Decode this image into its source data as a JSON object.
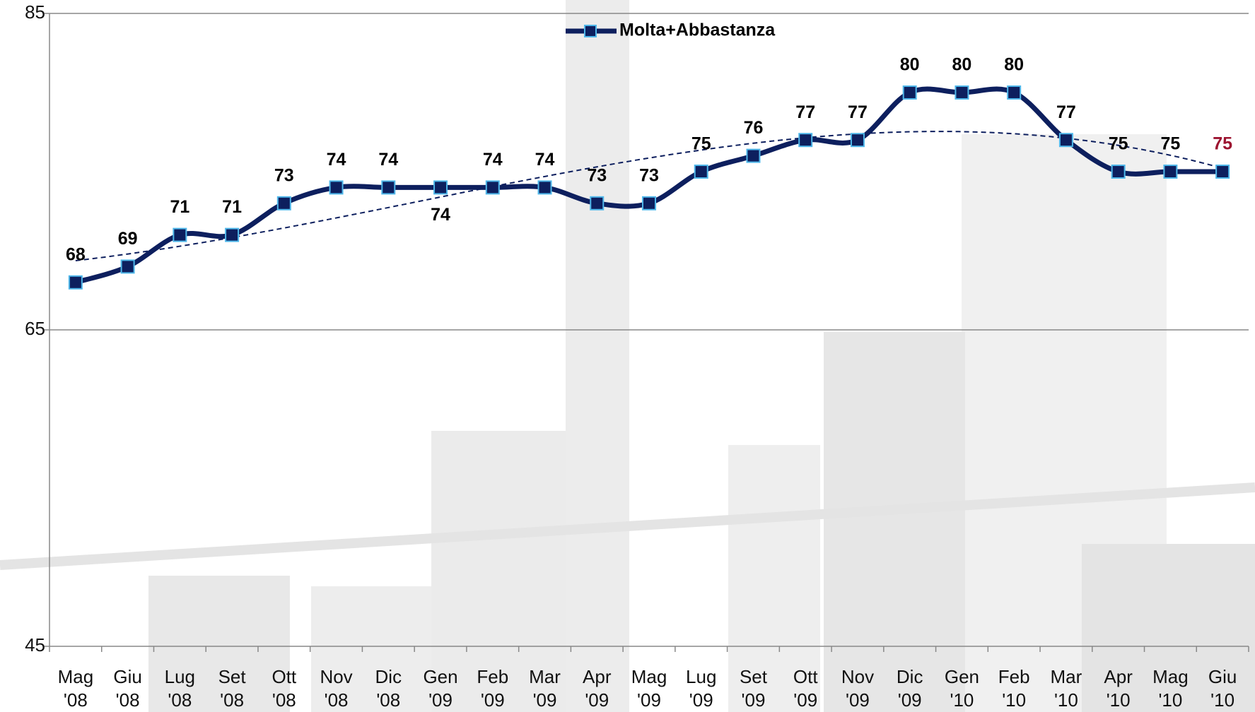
{
  "chart_data": {
    "type": "line",
    "categories": [
      "Mag '08",
      "Giu '08",
      "Lug '08",
      "Set '08",
      "Ott '08",
      "Nov '08",
      "Dic '08",
      "Gen '09",
      "Feb '09",
      "Mar '09",
      "Apr '09",
      "Mag '09",
      "Lug '09",
      "Set '09",
      "Ott '09",
      "Nov '09",
      "Dic '09",
      "Gen '10",
      "Feb '10",
      "Mar '10",
      "Apr '10",
      "Mag '10",
      "Giu '10"
    ],
    "series": [
      {
        "name": "Molta+Abbastanza",
        "color": "#0d1f5e",
        "marker_edge": "#4fb7ea",
        "values": [
          68,
          69,
          71,
          71,
          73,
          74,
          74,
          74,
          74,
          74,
          73,
          73,
          75,
          76,
          77,
          77,
          80,
          80,
          80,
          77,
          75,
          75,
          75
        ]
      }
    ],
    "ylim": [
      45,
      85
    ],
    "yticks": [
      45,
      65,
      85
    ],
    "grid": true,
    "legend": "top",
    "trendline": "polynomial",
    "labels_below": [
      7
    ],
    "highlight": {
      "index": 22,
      "color": "#9c1430"
    }
  }
}
